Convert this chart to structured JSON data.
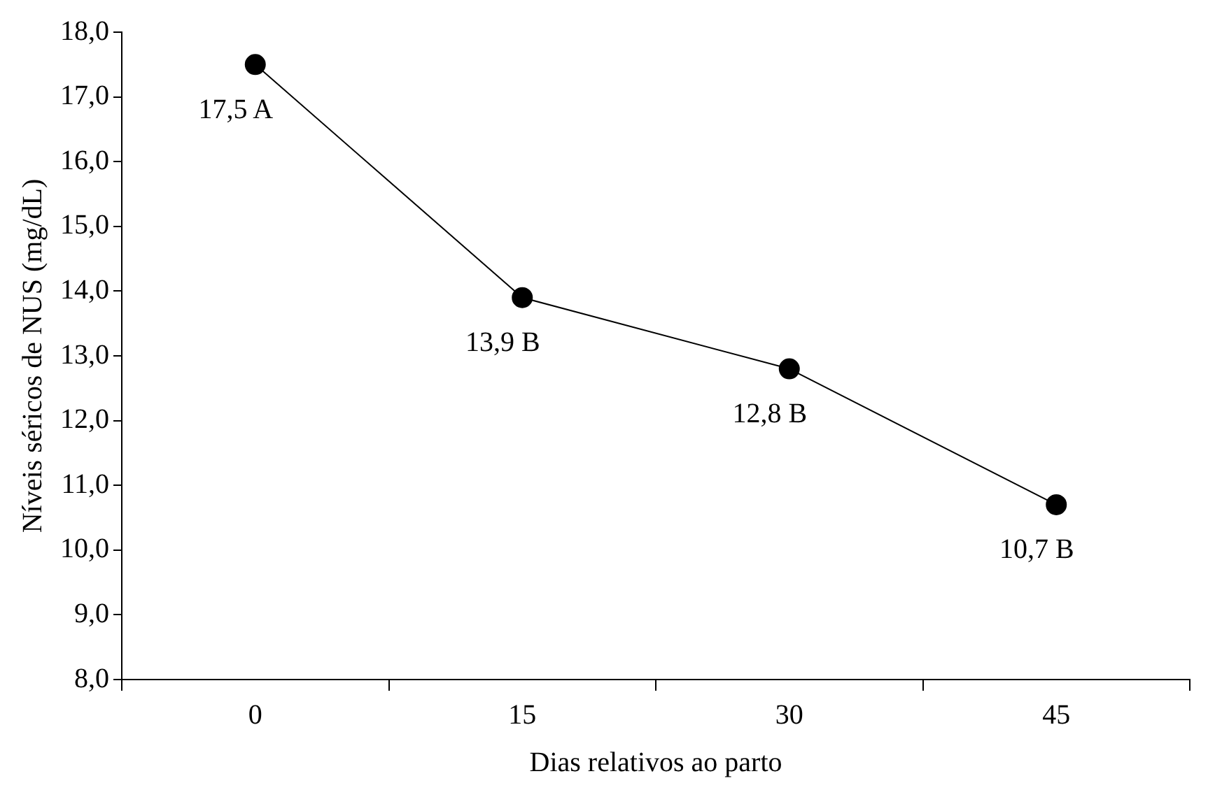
{
  "chart_data": {
    "type": "line",
    "xlabel": "Dias relativos ao parto",
    "ylabel": "Níveis séricos de NUS (mg/dL)",
    "categories": [
      "0",
      "15",
      "30",
      "45"
    ],
    "series": [
      {
        "color": "#000000",
        "values": [
          17.5,
          13.9,
          12.8,
          10.7
        ],
        "value_labels": [
          "17,5 A",
          "13,9 B",
          "12,8 B",
          "10,7 B"
        ]
      }
    ],
    "ylim": [
      8,
      18
    ],
    "yticks": [
      {
        "value": 8,
        "label": "8,0"
      },
      {
        "value": 9,
        "label": "9,0"
      },
      {
        "value": 10,
        "label": "10,0"
      },
      {
        "value": 11,
        "label": "11,0"
      },
      {
        "value": 12,
        "label": "12,0"
      },
      {
        "value": 13,
        "label": "13,0"
      },
      {
        "value": 14,
        "label": "14,0"
      },
      {
        "value": 15,
        "label": "15,0"
      },
      {
        "value": 16,
        "label": "16,0"
      },
      {
        "value": 17,
        "label": "17,0"
      },
      {
        "value": 18,
        "label": "18,0"
      }
    ],
    "grid": false,
    "legend": false,
    "marker": "circle",
    "line_style": "solid"
  }
}
